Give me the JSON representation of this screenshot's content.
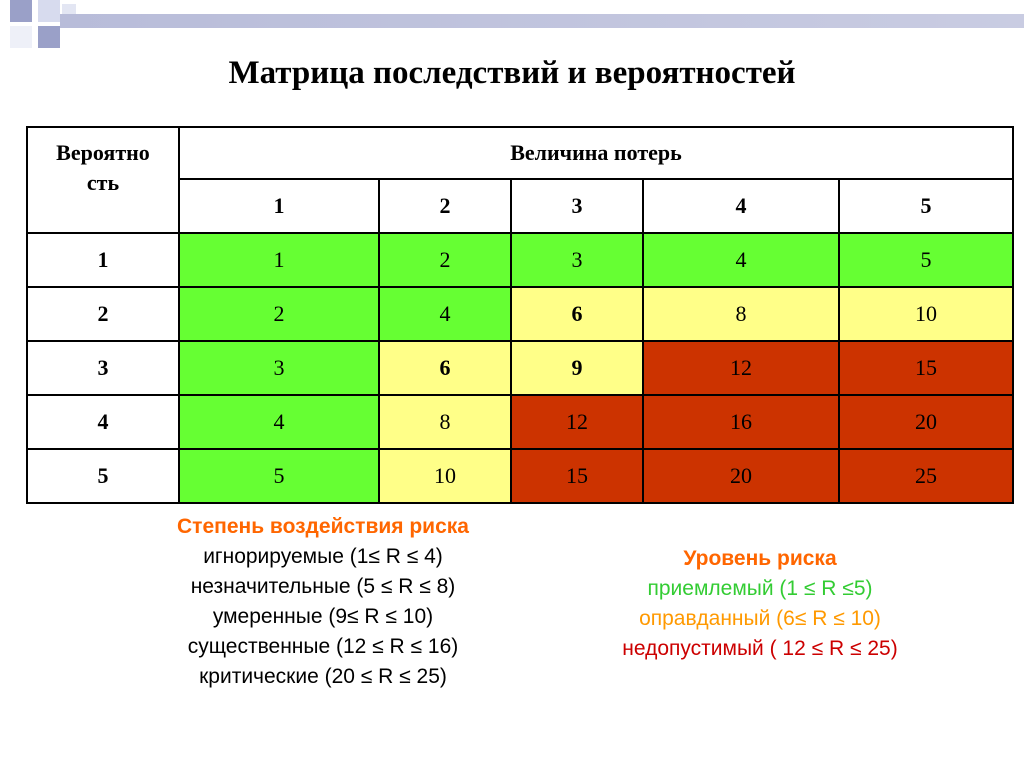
{
  "title": "Матрица последствий и вероятностей",
  "table": {
    "corner_line1": "Вероятно",
    "corner_line2": "сть",
    "loss_header": "Величина потерь",
    "columns": [
      "1",
      "2",
      "3",
      "4",
      "5"
    ],
    "rows": [
      {
        "label": "1",
        "cells": [
          {
            "v": "1",
            "c": "g",
            "b": false
          },
          {
            "v": "2",
            "c": "g",
            "b": false
          },
          {
            "v": "3",
            "c": "g",
            "b": false
          },
          {
            "v": "4",
            "c": "g",
            "b": false
          },
          {
            "v": "5",
            "c": "g",
            "b": false
          }
        ]
      },
      {
        "label": "2",
        "cells": [
          {
            "v": "2",
            "c": "g",
            "b": false
          },
          {
            "v": "4",
            "c": "g",
            "b": false
          },
          {
            "v": "6",
            "c": "y",
            "b": true
          },
          {
            "v": "8",
            "c": "y",
            "b": false
          },
          {
            "v": "10",
            "c": "y",
            "b": false
          }
        ]
      },
      {
        "label": "3",
        "cells": [
          {
            "v": "3",
            "c": "g",
            "b": false
          },
          {
            "v": "6",
            "c": "y",
            "b": true
          },
          {
            "v": "9",
            "c": "y",
            "b": true
          },
          {
            "v": "12",
            "c": "r",
            "b": false
          },
          {
            "v": "15",
            "c": "r",
            "b": false
          }
        ]
      },
      {
        "label": "4",
        "cells": [
          {
            "v": "4",
            "c": "g",
            "b": false
          },
          {
            "v": "8",
            "c": "y",
            "b": false
          },
          {
            "v": "12",
            "c": "r",
            "b": false
          },
          {
            "v": "16",
            "c": "r",
            "b": false
          },
          {
            "v": "20",
            "c": "r",
            "b": false
          }
        ]
      },
      {
        "label": "5",
        "cells": [
          {
            "v": "5",
            "c": "g",
            "b": false
          },
          {
            "v": "10",
            "c": "y",
            "b": false
          },
          {
            "v": "15",
            "c": "r",
            "b": false
          },
          {
            "v": "20",
            "c": "r",
            "b": false
          },
          {
            "v": "25",
            "c": "r",
            "b": false
          }
        ]
      }
    ]
  },
  "impact_legend": {
    "title": "Степень воздействия риска",
    "title_color": "#ff6600",
    "items": [
      "игнорируемые (1≤ R ≤ 4)",
      "незначительные (5 ≤ R ≤ 8)",
      "умеренные (9≤ R ≤ 10)",
      "существенные (12 ≤ R ≤ 16)",
      "критические (20 ≤ R ≤ 25)"
    ]
  },
  "level_legend": {
    "title": "Уровень риска",
    "title_color": "#ff6600",
    "items": [
      {
        "text": "приемлемый (1 ≤ R ≤5)",
        "color": "#33cc33"
      },
      {
        "text": "оправданный (6≤ R ≤ 10)",
        "color": "#ff9900"
      },
      {
        "text": "недопустимый ( 12 ≤ R ≤ 25)",
        "color": "#cc0000"
      }
    ]
  }
}
